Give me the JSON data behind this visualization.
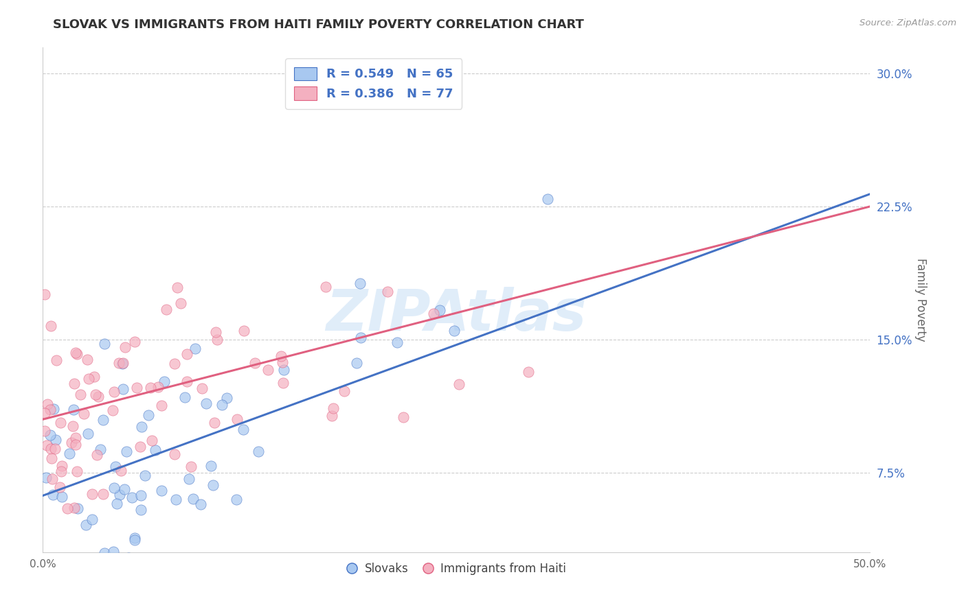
{
  "title": "SLOVAK VS IMMIGRANTS FROM HAITI FAMILY POVERTY CORRELATION CHART",
  "source": "Source: ZipAtlas.com",
  "ylabel": "Family Poverty",
  "x_min": 0.0,
  "x_max": 0.5,
  "y_min": 0.03,
  "y_max": 0.315,
  "x_ticks": [
    0.0,
    0.1,
    0.2,
    0.3,
    0.4,
    0.5
  ],
  "x_tick_labels": [
    "0.0%",
    "",
    "",
    "",
    "",
    "50.0%"
  ],
  "y_ticks": [
    0.075,
    0.15,
    0.225,
    0.3
  ],
  "y_tick_labels": [
    "7.5%",
    "15.0%",
    "22.5%",
    "30.0%"
  ],
  "blue_R": 0.549,
  "blue_N": 65,
  "pink_R": 0.386,
  "pink_N": 77,
  "blue_color": "#A8C8F0",
  "pink_color": "#F4B0C0",
  "blue_line_color": "#4472C4",
  "pink_line_color": "#E06080",
  "legend_label_blue": "R = 0.549   N = 65",
  "legend_label_pink": "R = 0.386   N = 77",
  "scatter_label_blue": "Slovaks",
  "scatter_label_pink": "Immigrants from Haiti",
  "watermark": "ZIPAtlas",
  "background_color": "#FFFFFF",
  "grid_color": "#CCCCCC",
  "title_color": "#333333",
  "blue_line_intercept": 0.062,
  "blue_line_slope": 0.34,
  "pink_line_intercept": 0.105,
  "pink_line_slope": 0.24,
  "blue_seed": 7,
  "pink_seed": 13
}
